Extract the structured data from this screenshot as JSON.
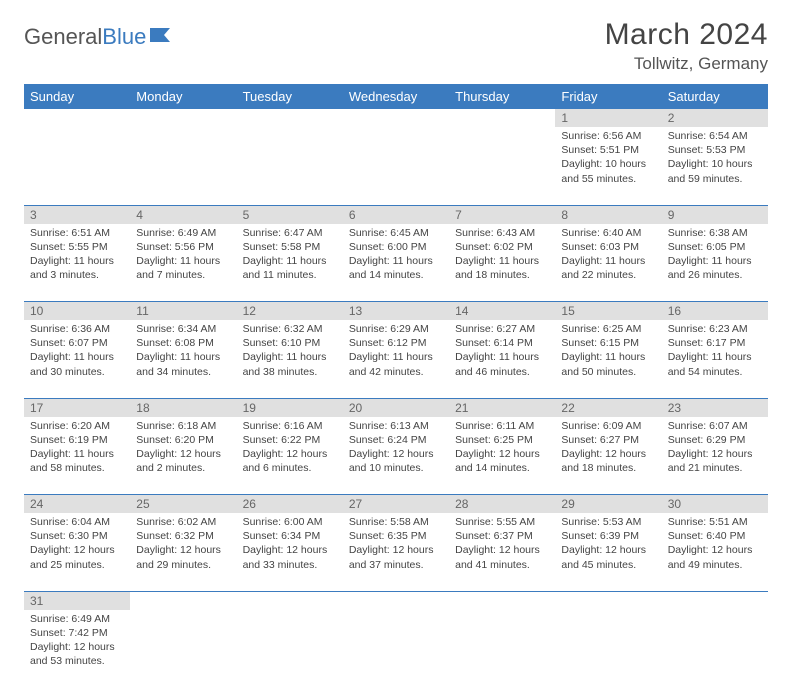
{
  "logo": {
    "text1": "General",
    "text2": "Blue"
  },
  "title": "March 2024",
  "location": "Tollwitz, Germany",
  "header_bg": "#3b7bbf",
  "daynum_bg": "#e0e0e0",
  "weekdays": [
    "Sunday",
    "Monday",
    "Tuesday",
    "Wednesday",
    "Thursday",
    "Friday",
    "Saturday"
  ],
  "weeks": [
    [
      null,
      null,
      null,
      null,
      null,
      {
        "n": "1",
        "sr": "6:56 AM",
        "ss": "5:51 PM",
        "dl": "10 hours and 55 minutes."
      },
      {
        "n": "2",
        "sr": "6:54 AM",
        "ss": "5:53 PM",
        "dl": "10 hours and 59 minutes."
      }
    ],
    [
      {
        "n": "3",
        "sr": "6:51 AM",
        "ss": "5:55 PM",
        "dl": "11 hours and 3 minutes."
      },
      {
        "n": "4",
        "sr": "6:49 AM",
        "ss": "5:56 PM",
        "dl": "11 hours and 7 minutes."
      },
      {
        "n": "5",
        "sr": "6:47 AM",
        "ss": "5:58 PM",
        "dl": "11 hours and 11 minutes."
      },
      {
        "n": "6",
        "sr": "6:45 AM",
        "ss": "6:00 PM",
        "dl": "11 hours and 14 minutes."
      },
      {
        "n": "7",
        "sr": "6:43 AM",
        "ss": "6:02 PM",
        "dl": "11 hours and 18 minutes."
      },
      {
        "n": "8",
        "sr": "6:40 AM",
        "ss": "6:03 PM",
        "dl": "11 hours and 22 minutes."
      },
      {
        "n": "9",
        "sr": "6:38 AM",
        "ss": "6:05 PM",
        "dl": "11 hours and 26 minutes."
      }
    ],
    [
      {
        "n": "10",
        "sr": "6:36 AM",
        "ss": "6:07 PM",
        "dl": "11 hours and 30 minutes."
      },
      {
        "n": "11",
        "sr": "6:34 AM",
        "ss": "6:08 PM",
        "dl": "11 hours and 34 minutes."
      },
      {
        "n": "12",
        "sr": "6:32 AM",
        "ss": "6:10 PM",
        "dl": "11 hours and 38 minutes."
      },
      {
        "n": "13",
        "sr": "6:29 AM",
        "ss": "6:12 PM",
        "dl": "11 hours and 42 minutes."
      },
      {
        "n": "14",
        "sr": "6:27 AM",
        "ss": "6:14 PM",
        "dl": "11 hours and 46 minutes."
      },
      {
        "n": "15",
        "sr": "6:25 AM",
        "ss": "6:15 PM",
        "dl": "11 hours and 50 minutes."
      },
      {
        "n": "16",
        "sr": "6:23 AM",
        "ss": "6:17 PM",
        "dl": "11 hours and 54 minutes."
      }
    ],
    [
      {
        "n": "17",
        "sr": "6:20 AM",
        "ss": "6:19 PM",
        "dl": "11 hours and 58 minutes."
      },
      {
        "n": "18",
        "sr": "6:18 AM",
        "ss": "6:20 PM",
        "dl": "12 hours and 2 minutes."
      },
      {
        "n": "19",
        "sr": "6:16 AM",
        "ss": "6:22 PM",
        "dl": "12 hours and 6 minutes."
      },
      {
        "n": "20",
        "sr": "6:13 AM",
        "ss": "6:24 PM",
        "dl": "12 hours and 10 minutes."
      },
      {
        "n": "21",
        "sr": "6:11 AM",
        "ss": "6:25 PM",
        "dl": "12 hours and 14 minutes."
      },
      {
        "n": "22",
        "sr": "6:09 AM",
        "ss": "6:27 PM",
        "dl": "12 hours and 18 minutes."
      },
      {
        "n": "23",
        "sr": "6:07 AM",
        "ss": "6:29 PM",
        "dl": "12 hours and 21 minutes."
      }
    ],
    [
      {
        "n": "24",
        "sr": "6:04 AM",
        "ss": "6:30 PM",
        "dl": "12 hours and 25 minutes."
      },
      {
        "n": "25",
        "sr": "6:02 AM",
        "ss": "6:32 PM",
        "dl": "12 hours and 29 minutes."
      },
      {
        "n": "26",
        "sr": "6:00 AM",
        "ss": "6:34 PM",
        "dl": "12 hours and 33 minutes."
      },
      {
        "n": "27",
        "sr": "5:58 AM",
        "ss": "6:35 PM",
        "dl": "12 hours and 37 minutes."
      },
      {
        "n": "28",
        "sr": "5:55 AM",
        "ss": "6:37 PM",
        "dl": "12 hours and 41 minutes."
      },
      {
        "n": "29",
        "sr": "5:53 AM",
        "ss": "6:39 PM",
        "dl": "12 hours and 45 minutes."
      },
      {
        "n": "30",
        "sr": "5:51 AM",
        "ss": "6:40 PM",
        "dl": "12 hours and 49 minutes."
      }
    ],
    [
      {
        "n": "31",
        "sr": "6:49 AM",
        "ss": "7:42 PM",
        "dl": "12 hours and 53 minutes."
      },
      null,
      null,
      null,
      null,
      null,
      null
    ]
  ],
  "labels": {
    "sunrise": "Sunrise:",
    "sunset": "Sunset:",
    "daylight": "Daylight:"
  }
}
